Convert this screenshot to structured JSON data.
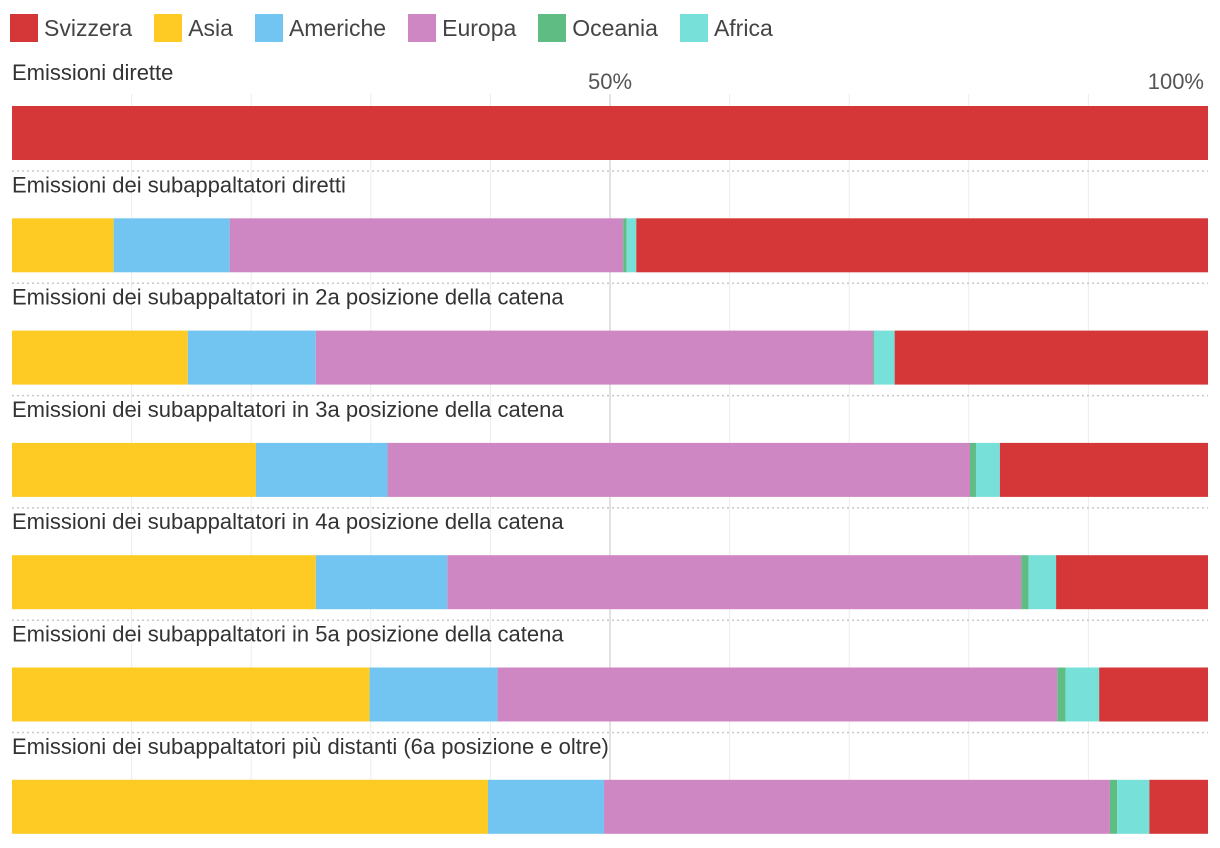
{
  "chart_data": {
    "type": "bar",
    "orientation": "horizontal",
    "stacked": true,
    "normalized": true,
    "title": "",
    "xlabel": "",
    "ylabel": "",
    "xlim": [
      0,
      100
    ],
    "ticks": [
      {
        "value": 50,
        "label": "50%"
      },
      {
        "value": 100,
        "label": "100%"
      }
    ],
    "grid": true,
    "legend_position": "top-left",
    "categories": [
      "Emissioni dirette",
      "Emissioni dei subappaltatori diretti",
      "Emissioni dei subappaltatori in 2a posizione della catena",
      "Emissioni dei subappaltatori in 3a posizione della catena",
      "Emissioni dei subappaltatori in 4a posizione della catena",
      "Emissioni dei subappaltatori in 5a posizione della catena",
      "Emissioni dei subappaltatori più distanti (6a posizione e oltre)"
    ],
    "series": [
      {
        "name": "Asia",
        "color": "#fdcb24",
        "values": [
          0,
          8.5,
          14.7,
          20.4,
          25.4,
          29.9,
          39.8
        ]
      },
      {
        "name": "Americhe",
        "color": "#72c5f0",
        "values": [
          0,
          9.7,
          10.7,
          11.0,
          11.0,
          10.7,
          9.7
        ]
      },
      {
        "name": "Europa",
        "color": "#cf87c3",
        "values": [
          0,
          32.9,
          46.6,
          48.7,
          48.0,
          46.8,
          42.3
        ]
      },
      {
        "name": "Oceania",
        "color": "#5fbd84",
        "values": [
          0,
          0.3,
          0.1,
          0.5,
          0.6,
          0.7,
          0.6
        ]
      },
      {
        "name": "Africa",
        "color": "#77e0d8",
        "values": [
          0,
          0.8,
          1.7,
          2.0,
          2.3,
          2.8,
          2.7
        ]
      },
      {
        "name": "Svizzera",
        "color": "#d53637",
        "values": [
          100,
          47.8,
          26.2,
          17.4,
          12.7,
          9.1,
          4.9
        ]
      }
    ],
    "legend_order": [
      "Svizzera",
      "Asia",
      "Americhe",
      "Europa",
      "Oceania",
      "Africa"
    ]
  }
}
